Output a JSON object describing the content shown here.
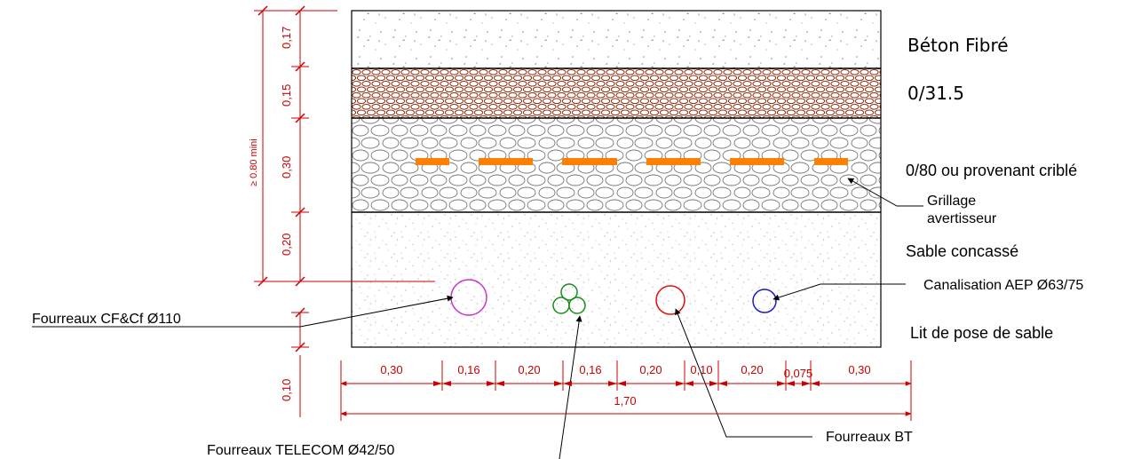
{
  "layers": {
    "beton": "Béton Fibré",
    "gravel_031": "0/31.5",
    "gravel_080": "0/80 ou provenant criblé",
    "grillage_line1": "Grillage",
    "grillage_line2": "avertisseur",
    "sable_concasse": "Sable concassé",
    "lit_de_pose": "Lit de pose de sable"
  },
  "pipes": {
    "aep": "Canalisation AEP Ø63/75",
    "cf": "Fourreaux CF&Cf Ø110",
    "telecom": "Fourreaux TELECOM Ø42/50",
    "bt": "Fourreaux BT"
  },
  "vertical_dims": {
    "d017": "0,17",
    "d015": "0,15",
    "d030": "0,30",
    "d020": "0,20",
    "d010": "0,10",
    "total": "≥ 0.80 mini"
  },
  "horizontal_dims": {
    "segments": [
      "0,30",
      "0,16",
      "0,20",
      "0,16",
      "0,20",
      "0,10",
      "0,20",
      "0,075",
      "0,30"
    ],
    "total": "1,70"
  },
  "colors": {
    "dimension": "#cc0000",
    "warning_mesh": "#ff8000",
    "pipe_cf": "#cc33cc",
    "pipe_telecom": "#1a8c1a",
    "pipe_bt": "#e01010",
    "pipe_aep": "#1a1acc",
    "gravel_031": "#8b2a0c"
  }
}
